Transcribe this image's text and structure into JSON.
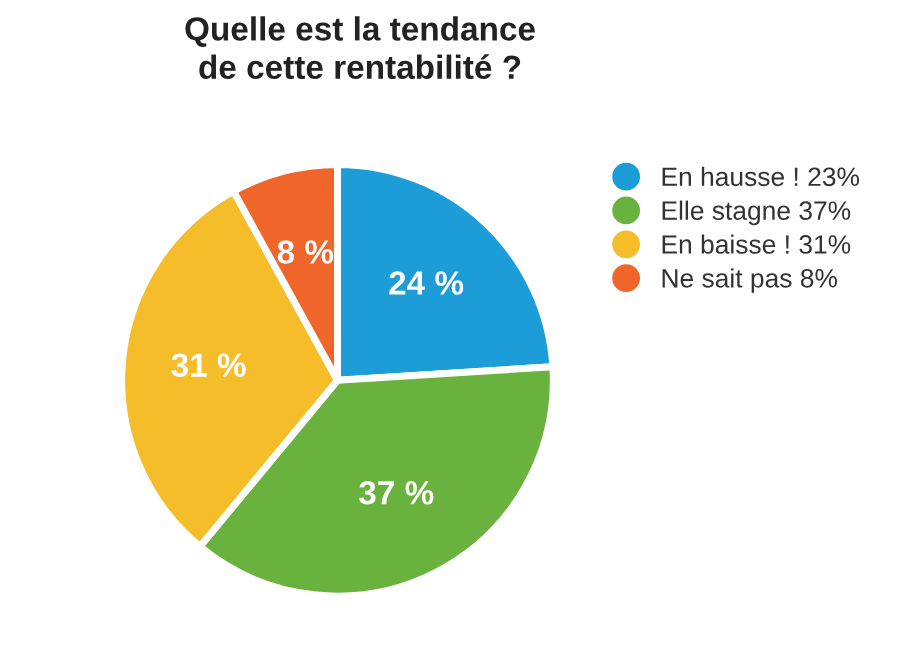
{
  "chart_data": {
    "type": "pie",
    "title": "Quelle est la tendance\nde cette rentabilité ?",
    "categories": [
      "En hausse ! 23%",
      "Elle stagne 37%",
      "En baisse ! 31%",
      "Ne sait pas 8%"
    ],
    "values": [
      24,
      37,
      31,
      8
    ],
    "value_labels": [
      "24 %",
      "37 %",
      "31 %",
      "8 %"
    ],
    "colors": [
      "#1d9dd8",
      "#6ab23e",
      "#f6bd2b",
      "#f0662a"
    ],
    "legend": "right"
  }
}
